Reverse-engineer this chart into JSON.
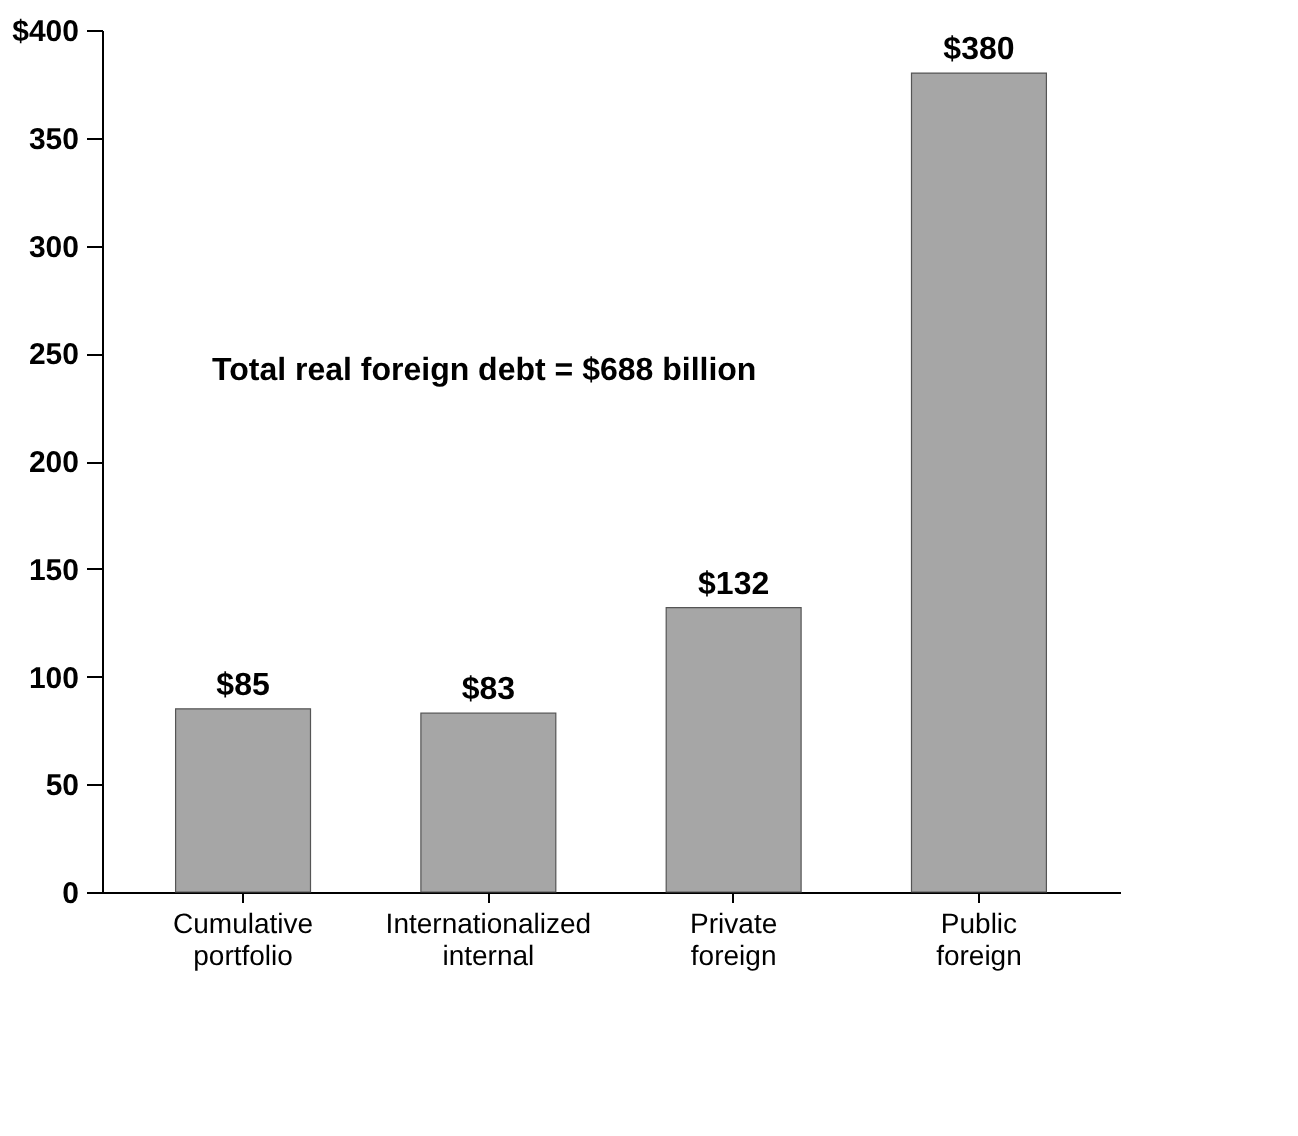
{
  "chart_data": {
    "type": "bar",
    "categories": [
      "Cumulative portfolio",
      "Internationalized internal",
      "Private foreign",
      "Public foreign"
    ],
    "values": [
      85,
      83,
      132,
      380
    ],
    "value_labels": [
      "$85",
      "$83",
      "$132",
      "$380"
    ],
    "color": "#a6a6a6",
    "ylim": [
      0,
      400
    ],
    "yticks": [
      0,
      50,
      100,
      150,
      200,
      250,
      300,
      350,
      {
        "value": 400,
        "label": "$400"
      }
    ],
    "annotations": [
      "Total real foreign debt = $688 billion"
    ],
    "grid": false
  }
}
